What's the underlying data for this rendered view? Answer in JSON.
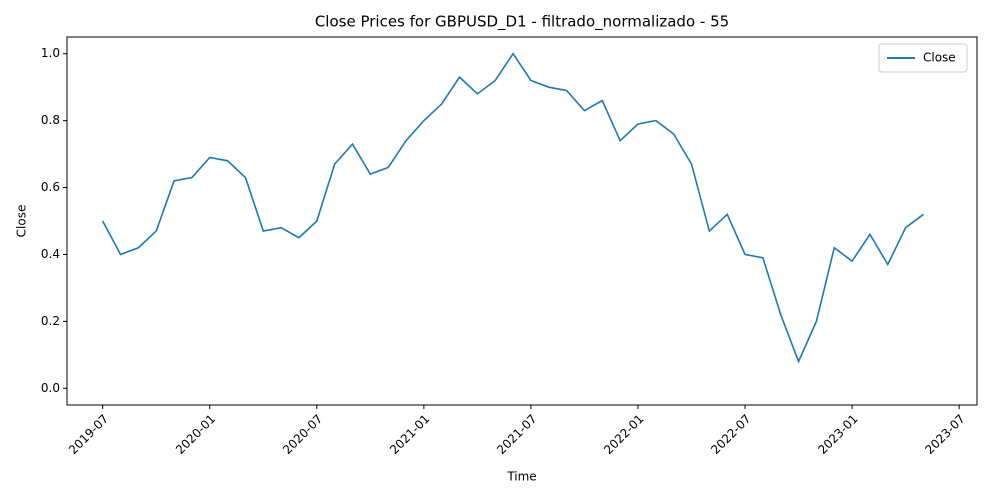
{
  "chart_data": {
    "type": "line",
    "title": "Close Prices for GBPUSD_D1 - filtrado_normalizado - 55",
    "x_label": "Time",
    "y_label": "Close",
    "x": [
      "2019-07",
      "2019-08",
      "2019-09",
      "2019-10",
      "2019-11",
      "2019-12",
      "2020-01",
      "2020-02",
      "2020-03",
      "2020-04",
      "2020-05",
      "2020-06",
      "2020-07",
      "2020-08",
      "2020-09",
      "2020-10",
      "2020-11",
      "2020-12",
      "2021-01",
      "2021-02",
      "2021-03",
      "2021-04",
      "2021-05",
      "2021-06",
      "2021-07",
      "2021-08",
      "2021-09",
      "2021-10",
      "2021-11",
      "2021-12",
      "2022-01",
      "2022-02",
      "2022-03",
      "2022-04",
      "2022-05",
      "2022-06",
      "2022-07",
      "2022-08",
      "2022-09",
      "2022-10",
      "2022-11",
      "2022-12",
      "2023-01",
      "2023-02",
      "2023-03",
      "2023-04",
      "2023-05"
    ],
    "series": [
      {
        "name": "Close",
        "color": "#1f77b4",
        "values": [
          0.5,
          0.4,
          0.42,
          0.47,
          0.62,
          0.63,
          0.69,
          0.68,
          0.63,
          0.47,
          0.48,
          0.45,
          0.5,
          0.67,
          0.73,
          0.64,
          0.66,
          0.74,
          0.8,
          0.85,
          0.93,
          0.88,
          0.92,
          1.0,
          0.92,
          0.9,
          0.89,
          0.83,
          0.86,
          0.74,
          0.79,
          0.8,
          0.76,
          0.67,
          0.47,
          0.52,
          0.4,
          0.39,
          0.22,
          0.08,
          0.2,
          0.42,
          0.38,
          0.46,
          0.37,
          0.48,
          0.52
        ]
      }
    ],
    "xlim": [
      "2019-05",
      "2023-08"
    ],
    "xticks": [
      "2019-07",
      "2020-01",
      "2020-07",
      "2021-01",
      "2021-07",
      "2022-01",
      "2022-07",
      "2023-01",
      "2023-07"
    ],
    "ylim": [
      -0.05,
      1.05
    ],
    "yticks": [
      {
        "value": 0,
        "label": "0.0"
      },
      {
        "value": 0.2,
        "label": "0.2"
      },
      {
        "value": 0.4,
        "label": "0.4"
      },
      {
        "value": 0.6,
        "label": "0.6"
      },
      {
        "value": 0.8,
        "label": "0.8"
      },
      {
        "value": 1,
        "label": "1.0"
      }
    ],
    "legend": "upper right"
  }
}
